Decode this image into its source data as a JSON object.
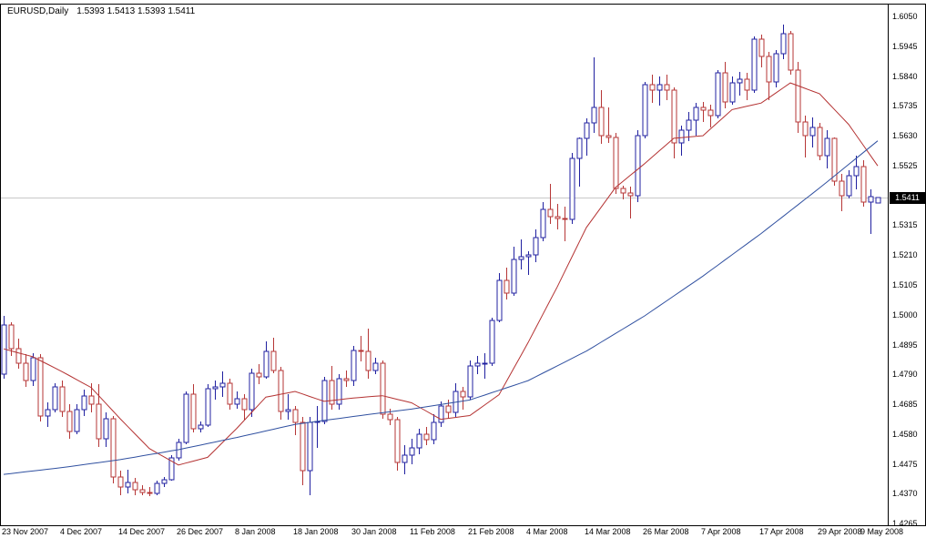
{
  "header": {
    "symbol_period": "EURUSD,Daily",
    "ohlc_quote": "1.5393 1.5413 1.5393 1.5411"
  },
  "chart_data": {
    "type": "candlestick",
    "title": "EURUSD,Daily",
    "symbol": "EURUSD",
    "timeframe": "Daily",
    "current_bar": {
      "open": "1.5393",
      "high": "1.5413",
      "low": "1.5393",
      "close": "1.5411"
    },
    "current_price": "1.5411",
    "bar_spacing": 8,
    "ylim": [
      1.4259,
      1.6095
    ],
    "grid": "off",
    "colors": {
      "background": "#ffffff",
      "frame": "#000000",
      "up": "#2020a0",
      "down": "#b63636",
      "ma_fast": "#b43232",
      "ma_slow": "#3050a0",
      "price_line": "#c8c8c8",
      "price_tag_bg": "#000000",
      "price_tag_text": "#ffffff",
      "axis_text": "#000000"
    },
    "y_axis_labels": [
      "1.6050",
      "1.5945",
      "1.5840",
      "1.5735",
      "1.5630",
      "1.5525",
      "1.5420",
      "1.5315",
      "1.5210",
      "1.5105",
      "1.5000",
      "1.4895",
      "1.4790",
      "1.4685",
      "1.4580",
      "1.4475",
      "1.4370",
      "1.4265"
    ],
    "x_axis_labels": [
      {
        "i": 0,
        "text": "23 Nov 2007"
      },
      {
        "i": 8,
        "text": "4 Dec 2007"
      },
      {
        "i": 16,
        "text": "14 Dec 2007"
      },
      {
        "i": 24,
        "text": "26 Dec 2007"
      },
      {
        "i": 32,
        "text": "8 Jan 2008"
      },
      {
        "i": 40,
        "text": "18 Jan 2008"
      },
      {
        "i": 48,
        "text": "30 Jan 2008"
      },
      {
        "i": 56,
        "text": "11 Feb 2008"
      },
      {
        "i": 64,
        "text": "21 Feb 2008"
      },
      {
        "i": 72,
        "text": "4 Mar 2008"
      },
      {
        "i": 80,
        "text": "14 Mar 2008"
      },
      {
        "i": 88,
        "text": "26 Mar 2008"
      },
      {
        "i": 96,
        "text": "7 Apr 2008"
      },
      {
        "i": 104,
        "text": "17 Apr 2008"
      },
      {
        "i": 112,
        "text": "29 Apr 2008"
      },
      {
        "i": 120,
        "text": "9 May 2008"
      }
    ],
    "candles": [
      [
        1.479,
        1.4995,
        1.4775,
        1.4965
      ],
      [
        1.4965,
        1.4975,
        1.4855,
        1.488
      ],
      [
        1.488,
        1.4915,
        1.481,
        1.483
      ],
      [
        1.483,
        1.486,
        1.4745,
        1.477
      ],
      [
        1.477,
        1.4865,
        1.475,
        1.485
      ],
      [
        1.485,
        1.486,
        1.4625,
        1.4645
      ],
      [
        1.4645,
        1.469,
        1.4605,
        1.4665
      ],
      [
        1.4665,
        1.476,
        1.4655,
        1.4745
      ],
      [
        1.4745,
        1.477,
        1.464,
        1.466
      ],
      [
        1.466,
        1.4685,
        1.4565,
        1.459
      ],
      [
        1.459,
        1.4685,
        1.458,
        1.4665
      ],
      [
        1.4665,
        1.4735,
        1.4645,
        1.4715
      ],
      [
        1.4715,
        1.476,
        1.4655,
        1.4685
      ],
      [
        1.4685,
        1.4755,
        1.4535,
        1.4565
      ],
      [
        1.4565,
        1.4655,
        1.4535,
        1.4635
      ],
      [
        1.4635,
        1.4645,
        1.4405,
        1.443
      ],
      [
        1.443,
        1.445,
        1.4365,
        1.4395
      ],
      [
        1.4395,
        1.4455,
        1.437,
        1.441
      ],
      [
        1.441,
        1.4425,
        1.4365,
        1.4385
      ],
      [
        1.4385,
        1.44,
        1.4365,
        1.4375
      ],
      [
        1.4375,
        1.4395,
        1.436,
        1.437
      ],
      [
        1.437,
        1.4415,
        1.4365,
        1.4405
      ],
      [
        1.4405,
        1.443,
        1.4395,
        1.442
      ],
      [
        1.442,
        1.4505,
        1.4415,
        1.4495
      ],
      [
        1.4495,
        1.4565,
        1.4485,
        1.455
      ],
      [
        1.455,
        1.473,
        1.4545,
        1.472
      ],
      [
        1.472,
        1.4755,
        1.4585,
        1.46
      ],
      [
        1.46,
        1.4625,
        1.4585,
        1.461
      ],
      [
        1.461,
        1.4755,
        1.4605,
        1.474
      ],
      [
        1.474,
        1.477,
        1.47,
        1.4745
      ],
      [
        1.4745,
        1.48,
        1.471,
        1.476
      ],
      [
        1.476,
        1.4775,
        1.4665,
        1.4685
      ],
      [
        1.4685,
        1.473,
        1.467,
        1.4705
      ],
      [
        1.4705,
        1.472,
        1.463,
        1.4665
      ],
      [
        1.4665,
        1.481,
        1.464,
        1.4795
      ],
      [
        1.4795,
        1.4825,
        1.4755,
        1.478
      ],
      [
        1.478,
        1.4905,
        1.4775,
        1.487
      ],
      [
        1.487,
        1.492,
        1.4795,
        1.4805
      ],
      [
        1.4805,
        1.4815,
        1.463,
        1.466
      ],
      [
        1.466,
        1.472,
        1.463,
        1.4665
      ],
      [
        1.4665,
        1.468,
        1.4575,
        1.462
      ],
      [
        1.462,
        1.464,
        1.44,
        1.445
      ],
      [
        1.445,
        1.464,
        1.4365,
        1.462
      ],
      [
        1.462,
        1.468,
        1.453,
        1.4625
      ],
      [
        1.4625,
        1.478,
        1.4615,
        1.477
      ],
      [
        1.477,
        1.482,
        1.4665,
        1.4685
      ],
      [
        1.4685,
        1.479,
        1.4665,
        1.4775
      ],
      [
        1.4775,
        1.4805,
        1.4745,
        1.477
      ],
      [
        1.477,
        1.489,
        1.475,
        1.4875
      ],
      [
        1.4875,
        1.4925,
        1.4835,
        1.487
      ],
      [
        1.487,
        1.495,
        1.4775,
        1.4805
      ],
      [
        1.4805,
        1.485,
        1.479,
        1.483
      ],
      [
        1.483,
        1.484,
        1.4635,
        1.465
      ],
      [
        1.465,
        1.467,
        1.461,
        1.463
      ],
      [
        1.463,
        1.464,
        1.445,
        1.448
      ],
      [
        1.448,
        1.454,
        1.444,
        1.4505
      ],
      [
        1.4505,
        1.4565,
        1.4475,
        1.453
      ],
      [
        1.453,
        1.46,
        1.451,
        1.458
      ],
      [
        1.458,
        1.4605,
        1.454,
        1.456
      ],
      [
        1.456,
        1.465,
        1.4545,
        1.462
      ],
      [
        1.462,
        1.4695,
        1.4605,
        1.468
      ],
      [
        1.468,
        1.47,
        1.4635,
        1.4655
      ],
      [
        1.4655,
        1.476,
        1.464,
        1.473
      ],
      [
        1.473,
        1.4745,
        1.4665,
        1.471
      ],
      [
        1.471,
        1.484,
        1.47,
        1.482
      ],
      [
        1.482,
        1.4855,
        1.479,
        1.483
      ],
      [
        1.483,
        1.4865,
        1.4775,
        1.483
      ],
      [
        1.483,
        1.499,
        1.482,
        1.498
      ],
      [
        1.498,
        1.5145,
        1.4975,
        1.512
      ],
      [
        1.512,
        1.5165,
        1.5055,
        1.5075
      ],
      [
        1.5075,
        1.524,
        1.5065,
        1.5195
      ],
      [
        1.5195,
        1.5265,
        1.516,
        1.5205
      ],
      [
        1.5205,
        1.5225,
        1.514,
        1.521
      ],
      [
        1.521,
        1.53,
        1.5185,
        1.527
      ],
      [
        1.527,
        1.5395,
        1.526,
        1.537
      ],
      [
        1.537,
        1.546,
        1.532,
        1.5345
      ],
      [
        1.5345,
        1.539,
        1.53,
        1.534
      ],
      [
        1.534,
        1.538,
        1.526,
        1.5335
      ],
      [
        1.5335,
        1.557,
        1.532,
        1.555
      ],
      [
        1.555,
        1.5625,
        1.545,
        1.562
      ],
      [
        1.562,
        1.569,
        1.556,
        1.5675
      ],
      [
        1.5675,
        1.5905,
        1.564,
        1.573
      ],
      [
        1.573,
        1.579,
        1.56,
        1.563
      ],
      [
        1.563,
        1.573,
        1.5605,
        1.5625
      ],
      [
        1.5625,
        1.564,
        1.5425,
        1.5445
      ],
      [
        1.5445,
        1.5455,
        1.5405,
        1.543
      ],
      [
        1.543,
        1.545,
        1.534,
        1.542
      ],
      [
        1.542,
        1.565,
        1.5395,
        1.563
      ],
      [
        1.563,
        1.582,
        1.562,
        1.581
      ],
      [
        1.581,
        1.5845,
        1.5745,
        1.579
      ],
      [
        1.579,
        1.584,
        1.5735,
        1.581
      ],
      [
        1.581,
        1.5845,
        1.5755,
        1.579
      ],
      [
        1.579,
        1.58,
        1.555,
        1.5605
      ],
      [
        1.5605,
        1.5665,
        1.556,
        1.565
      ],
      [
        1.565,
        1.5715,
        1.561,
        1.5685
      ],
      [
        1.5685,
        1.5745,
        1.563,
        1.573
      ],
      [
        1.573,
        1.575,
        1.568,
        1.572
      ],
      [
        1.572,
        1.574,
        1.566,
        1.57
      ],
      [
        1.57,
        1.586,
        1.569,
        1.585
      ],
      [
        1.585,
        1.589,
        1.5725,
        1.575
      ],
      [
        1.575,
        1.584,
        1.574,
        1.5815
      ],
      [
        1.5815,
        1.5855,
        1.577,
        1.583
      ],
      [
        1.583,
        1.585,
        1.5755,
        1.579
      ],
      [
        1.579,
        1.598,
        1.578,
        1.597
      ],
      [
        1.597,
        1.5985,
        1.587,
        1.591
      ],
      [
        1.591,
        1.5925,
        1.5755,
        1.582
      ],
      [
        1.582,
        1.593,
        1.58,
        1.592
      ],
      [
        1.592,
        1.602,
        1.59,
        1.599
      ],
      [
        1.599,
        1.6,
        1.5845,
        1.586
      ],
      [
        1.586,
        1.589,
        1.564,
        1.568
      ],
      [
        1.568,
        1.57,
        1.5555,
        1.563
      ],
      [
        1.563,
        1.5695,
        1.559,
        1.566
      ],
      [
        1.566,
        1.5675,
        1.5545,
        1.556
      ],
      [
        1.556,
        1.565,
        1.5515,
        1.562
      ],
      [
        1.562,
        1.5625,
        1.5455,
        1.547
      ],
      [
        1.547,
        1.5495,
        1.5365,
        1.542
      ],
      [
        1.542,
        1.551,
        1.541,
        1.549
      ],
      [
        1.549,
        1.556,
        1.544,
        1.552
      ],
      [
        1.552,
        1.5545,
        1.538,
        1.5395
      ],
      [
        1.5395,
        1.544,
        1.5285,
        1.5415
      ],
      [
        1.5393,
        1.5413,
        1.5393,
        1.5411
      ]
    ],
    "indicators": [
      {
        "name": "ma-fast-red",
        "color": "#b43232",
        "anchors": [
          [
            0,
            1.488
          ],
          [
            4,
            1.4852
          ],
          [
            8,
            1.48
          ],
          [
            12,
            1.4744
          ],
          [
            16,
            1.4634
          ],
          [
            20,
            1.4529
          ],
          [
            24,
            1.4471
          ],
          [
            28,
            1.4498
          ],
          [
            32,
            1.46
          ],
          [
            36,
            1.471
          ],
          [
            40,
            1.473
          ],
          [
            44,
            1.4695
          ],
          [
            48,
            1.4707
          ],
          [
            52,
            1.4715
          ],
          [
            56,
            1.469
          ],
          [
            60,
            1.4632
          ],
          [
            64,
            1.4645
          ],
          [
            68,
            1.4718
          ],
          [
            72,
            1.4902
          ],
          [
            76,
            1.5098
          ],
          [
            80,
            1.5307
          ],
          [
            84,
            1.5448
          ],
          [
            88,
            1.5532
          ],
          [
            92,
            1.5621
          ],
          [
            96,
            1.563
          ],
          [
            100,
            1.5722
          ],
          [
            104,
            1.5745
          ],
          [
            108,
            1.5816
          ],
          [
            112,
            1.5778
          ],
          [
            116,
            1.567
          ],
          [
            120,
            1.5524
          ]
        ]
      },
      {
        "name": "ma-slow-blue",
        "color": "#3050a0",
        "anchors": [
          [
            0,
            1.4438
          ],
          [
            8,
            1.4462
          ],
          [
            16,
            1.449
          ],
          [
            24,
            1.4525
          ],
          [
            32,
            1.4568
          ],
          [
            40,
            1.4614
          ],
          [
            48,
            1.4642
          ],
          [
            56,
            1.4668
          ],
          [
            64,
            1.47
          ],
          [
            72,
            1.4768
          ],
          [
            80,
            1.4872
          ],
          [
            88,
            1.4996
          ],
          [
            96,
            1.5136
          ],
          [
            104,
            1.5286
          ],
          [
            112,
            1.5446
          ],
          [
            120,
            1.5612
          ]
        ]
      }
    ]
  }
}
